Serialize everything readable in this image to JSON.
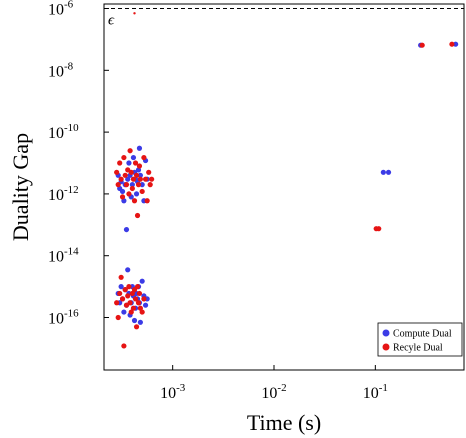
{
  "chart_data": {
    "type": "scatter",
    "xlabel": "Time (s)",
    "ylabel": "Duality Gap",
    "x_scale": "log",
    "y_scale": "log",
    "xlim": [
      0.00021,
      0.75
    ],
    "ylim": [
      2e-18,
      1.4e-06
    ],
    "x_ticks": [
      {
        "value": 0.001,
        "base": "10",
        "exp": "-3"
      },
      {
        "value": 0.01,
        "base": "10",
        "exp": "-2"
      },
      {
        "value": 0.1,
        "base": "10",
        "exp": "-1"
      }
    ],
    "y_ticks": [
      {
        "value": 1e-06,
        "base": "10",
        "exp": "-6"
      },
      {
        "value": 1e-08,
        "base": "10",
        "exp": "-8"
      },
      {
        "value": 1e-10,
        "base": "10",
        "exp": "-10"
      },
      {
        "value": 1e-12,
        "base": "10",
        "exp": "-12"
      },
      {
        "value": 1e-14,
        "base": "10",
        "exp": "-14"
      },
      {
        "value": 1e-16,
        "base": "10",
        "exp": "-16"
      }
    ],
    "threshold": {
      "label": "ϵ",
      "value": 1e-06,
      "style": "dashed"
    },
    "grid": false,
    "legend_position": "bottom-right",
    "series": [
      {
        "name": "Compute Dual",
        "color": "#3b3be6",
        "points": [
          [
            0.00029,
            4e-12
          ],
          [
            0.0003,
            1.5e-12
          ],
          [
            0.00031,
            2.5e-12
          ],
          [
            0.00032,
            1.2e-12
          ],
          [
            0.00033,
            6e-13
          ],
          [
            0.00034,
            2e-12
          ],
          [
            0.00035,
            7e-14
          ],
          [
            0.00036,
            3e-12
          ],
          [
            0.00037,
            1e-11
          ],
          [
            0.00038,
            4e-12
          ],
          [
            0.00039,
            8e-13
          ],
          [
            0.0004,
            2e-12
          ],
          [
            0.00041,
            1.5e-11
          ],
          [
            0.00042,
            5e-12
          ],
          [
            0.00043,
            3e-12
          ],
          [
            0.00044,
            1e-12
          ],
          [
            0.00045,
            2.5e-12
          ],
          [
            0.00046,
            6e-12
          ],
          [
            0.00047,
            3e-11
          ],
          [
            0.00048,
            4e-12
          ],
          [
            0.0005,
            2e-12
          ],
          [
            0.00052,
            6e-13
          ],
          [
            0.00054,
            1.2e-11
          ],
          [
            0.00056,
            3e-12
          ],
          [
            0.00029,
            6e-16
          ],
          [
            0.0003,
            3e-16
          ],
          [
            0.00031,
            1e-15
          ],
          [
            0.00032,
            4e-16
          ],
          [
            0.00033,
            1.5e-16
          ],
          [
            0.00034,
            8e-16
          ],
          [
            0.00035,
            2.5e-16
          ],
          [
            0.00036,
            3.5e-15
          ],
          [
            0.00037,
            6e-16
          ],
          [
            0.00038,
            1.2e-16
          ],
          [
            0.00039,
            3e-16
          ],
          [
            0.0004,
            1e-15
          ],
          [
            0.00041,
            5e-16
          ],
          [
            0.00042,
            8e-17
          ],
          [
            0.00043,
            2e-16
          ],
          [
            0.00044,
            6e-16
          ],
          [
            0.00045,
            4e-16
          ],
          [
            0.00046,
            1e-15
          ],
          [
            0.00047,
            3e-16
          ],
          [
            0.00048,
            7e-17
          ],
          [
            0.0005,
            1.5e-15
          ],
          [
            0.00052,
            5e-16
          ],
          [
            0.00054,
            2.5e-16
          ],
          [
            0.00056,
            4e-16
          ],
          [
            0.12,
            5e-12
          ],
          [
            0.135,
            5e-12
          ],
          [
            0.28,
            6.5e-08
          ],
          [
            0.62,
            7e-08
          ]
        ]
      },
      {
        "name": "Recyle Dual",
        "color": "#e61414",
        "points": [
          [
            0.00028,
            5e-12
          ],
          [
            0.00029,
            2e-12
          ],
          [
            0.0003,
            1e-11
          ],
          [
            0.00031,
            3e-12
          ],
          [
            0.00032,
            8e-13
          ],
          [
            0.00033,
            1.5e-11
          ],
          [
            0.00034,
            4e-12
          ],
          [
            0.00035,
            2e-12
          ],
          [
            0.00036,
            6e-12
          ],
          [
            0.00037,
            1e-12
          ],
          [
            0.00038,
            2.5e-11
          ],
          [
            0.00039,
            5e-12
          ],
          [
            0.0004,
            1.5e-12
          ],
          [
            0.00041,
            3e-12
          ],
          [
            0.00042,
            6e-13
          ],
          [
            0.00043,
            1e-11
          ],
          [
            0.00044,
            4e-12
          ],
          [
            0.00045,
            2e-13
          ],
          [
            0.00046,
            2e-12
          ],
          [
            0.00047,
            8e-12
          ],
          [
            0.00048,
            3e-12
          ],
          [
            0.0005,
            1.2e-12
          ],
          [
            0.00052,
            1.5e-11
          ],
          [
            0.00054,
            3e-12
          ],
          [
            0.00056,
            6e-13
          ],
          [
            0.00058,
            5e-12
          ],
          [
            0.0006,
            2e-12
          ],
          [
            0.00062,
            3e-12
          ],
          [
            0.00028,
            3e-16
          ],
          [
            0.00029,
            1e-16
          ],
          [
            0.0003,
            6e-16
          ],
          [
            0.00031,
            2e-15
          ],
          [
            0.00032,
            4e-16
          ],
          [
            0.00033,
            1.2e-17
          ],
          [
            0.00034,
            8e-16
          ],
          [
            0.00035,
            2.5e-16
          ],
          [
            0.00036,
            5e-16
          ],
          [
            0.00037,
            1e-15
          ],
          [
            0.00038,
            3e-16
          ],
          [
            0.00039,
            1.5e-16
          ],
          [
            0.0004,
            6e-16
          ],
          [
            0.00041,
            2e-16
          ],
          [
            0.00042,
            8e-16
          ],
          [
            0.00043,
            4e-16
          ],
          [
            0.00044,
            5e-17
          ],
          [
            0.00045,
            1e-15
          ],
          [
            0.00046,
            3e-16
          ],
          [
            0.00047,
            6e-16
          ],
          [
            0.00048,
            2e-16
          ],
          [
            0.0005,
            1.5e-16
          ],
          [
            0.00052,
            4e-16
          ],
          [
            0.00042,
            7e-07
          ],
          [
            0.102,
            7.5e-14
          ],
          [
            0.108,
            7.5e-14
          ],
          [
            0.29,
            6.5e-08
          ],
          [
            0.57,
            7e-08
          ]
        ]
      }
    ]
  }
}
